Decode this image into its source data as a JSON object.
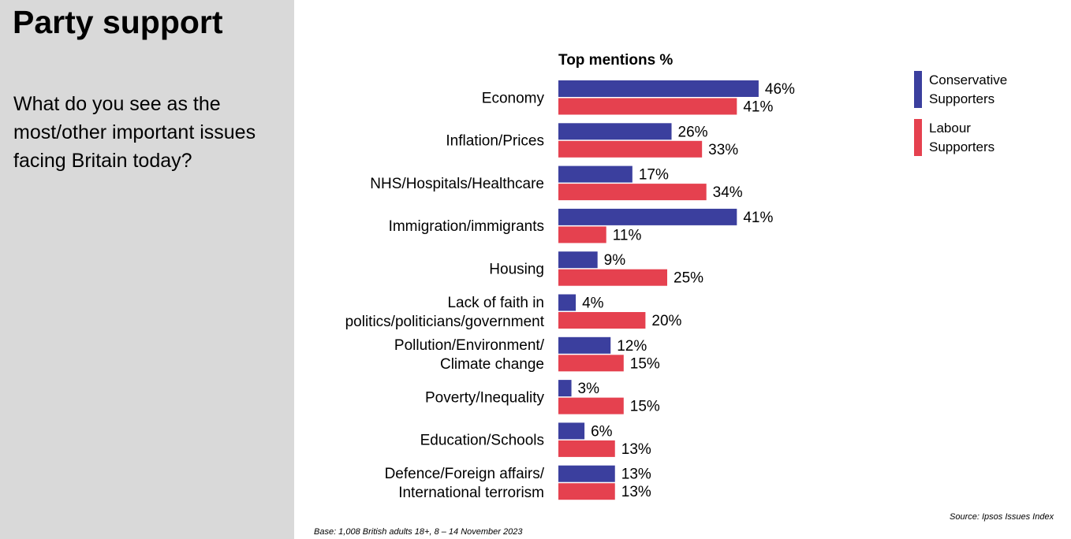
{
  "sidebar": {
    "title": "Party support",
    "question": "What do you see as the most/other important issues facing Britain today?"
  },
  "chart_data": {
    "type": "bar",
    "orientation": "horizontal",
    "title": "Top mentions %",
    "categories": [
      [
        "Economy"
      ],
      [
        "Inflation/Prices"
      ],
      [
        "NHS/Hospitals/Healthcare"
      ],
      [
        "Immigration/immigrants"
      ],
      [
        "Housing"
      ],
      [
        "Lack of faith in",
        "politics/politicians/government"
      ],
      [
        "Pollution/Environment/",
        "Climate change"
      ],
      [
        "Poverty/Inequality"
      ],
      [
        "Education/Schools"
      ],
      [
        "Defence/Foreign affairs/",
        "International terrorism"
      ]
    ],
    "series": [
      {
        "name": "Conservative Supporters",
        "color": "#3b3f9e",
        "values": [
          46,
          26,
          17,
          41,
          9,
          4,
          12,
          3,
          6,
          13
        ]
      },
      {
        "name": "Labour Supporters",
        "color": "#e5414f",
        "values": [
          41,
          33,
          34,
          11,
          25,
          20,
          15,
          15,
          13,
          13
        ]
      }
    ],
    "value_suffix": "%",
    "xlim": [
      0,
      100
    ],
    "grid": false,
    "legend": "top-right"
  },
  "legend": {
    "conservative": {
      "line1": "Conservative",
      "line2": "Supporters",
      "color": "#3b3f9e"
    },
    "labour": {
      "line1": "Labour",
      "line2": "Supporters",
      "color": "#e5414f"
    }
  },
  "footer": {
    "base": "Base: 1,008 British adults 18+, 8 – 14 November 2023",
    "source": "Source: Ipsos Issues Index"
  }
}
